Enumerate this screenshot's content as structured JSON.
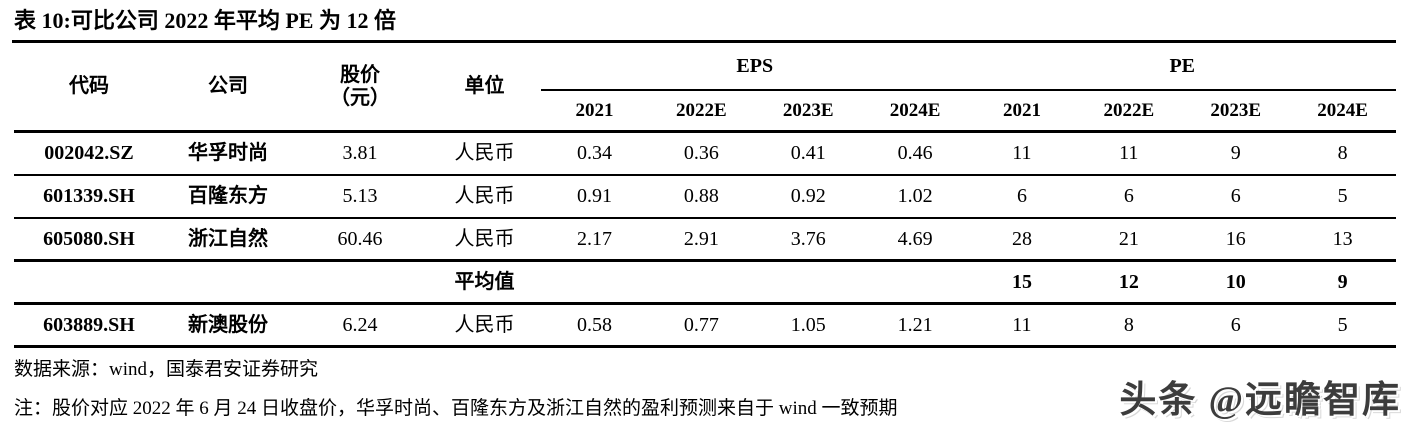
{
  "title": "表 10:可比公司 2022 年平均 PE 为 12 倍",
  "table": {
    "header": {
      "code": "代码",
      "company": "公司",
      "price_line1": "股价",
      "price_line2": "（元）",
      "unit": "单位",
      "eps_group": "EPS",
      "pe_group": "PE",
      "eps_years": [
        "2021",
        "2022E",
        "2023E",
        "2024E"
      ],
      "pe_years": [
        "2021",
        "2022E",
        "2023E",
        "2024E"
      ]
    },
    "rows": [
      {
        "code": "002042.SZ",
        "company": "华孚时尚",
        "price": "3.81",
        "unit": "人民币",
        "eps": [
          "0.34",
          "0.36",
          "0.41",
          "0.46"
        ],
        "pe": [
          "11",
          "11",
          "9",
          "8"
        ]
      },
      {
        "code": "601339.SH",
        "company": "百隆东方",
        "price": "5.13",
        "unit": "人民币",
        "eps": [
          "0.91",
          "0.88",
          "0.92",
          "1.02"
        ],
        "pe": [
          "6",
          "6",
          "6",
          "5"
        ]
      },
      {
        "code": "605080.SH",
        "company": "浙江自然",
        "price": "60.46",
        "unit": "人民币",
        "eps": [
          "2.17",
          "2.91",
          "3.76",
          "4.69"
        ],
        "pe": [
          "28",
          "21",
          "16",
          "13"
        ]
      }
    ],
    "average_row": {
      "label": "平均值",
      "pe": [
        "15",
        "12",
        "10",
        "9"
      ]
    },
    "last_row": {
      "code": "603889.SH",
      "company": "新澳股份",
      "price": "6.24",
      "unit": "人民币",
      "eps": [
        "0.58",
        "0.77",
        "1.05",
        "1.21"
      ],
      "pe": [
        "11",
        "8",
        "6",
        "5"
      ]
    }
  },
  "footer": {
    "source": "数据来源：wind，国泰君安证券研究",
    "note": "注：股价对应 2022 年 6 月 24 日收盘价，华孚时尚、百隆东方及浙江自然的盈利预测来自于 wind 一致预期"
  },
  "watermark": "头条 @远瞻智库",
  "colors": {
    "text": "#000000",
    "rule": "#000000",
    "background": "#ffffff",
    "watermark": "#3c3c3c"
  }
}
